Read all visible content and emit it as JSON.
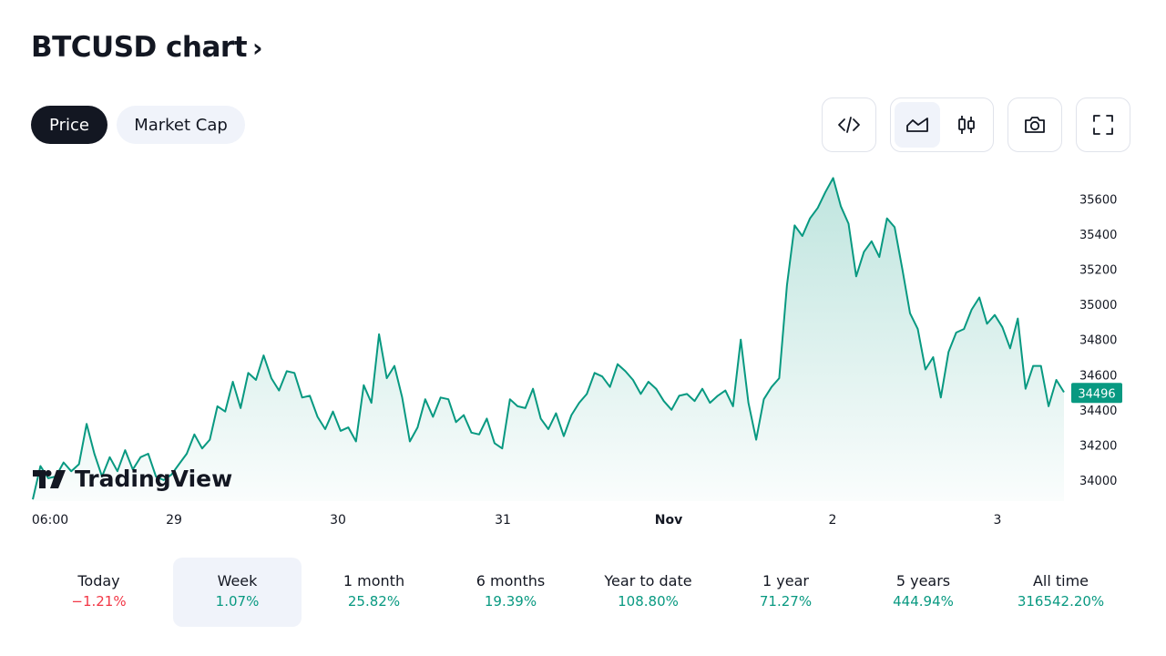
{
  "header": {
    "title": "BTCUSD chart",
    "chevron": "›"
  },
  "toggle": {
    "price": "Price",
    "market_cap": "Market Cap"
  },
  "toolbar": {
    "embed_icon": "code-icon",
    "area_icon": "area-chart-icon",
    "candles_icon": "candlestick-icon",
    "snapshot_icon": "camera-icon",
    "fullscreen_icon": "fullscreen-icon"
  },
  "logo": {
    "text": "TradingView"
  },
  "chart_data": {
    "type": "area",
    "symbol": "BTCUSD",
    "y_ticks": [
      "35600",
      "35400",
      "35200",
      "35000",
      "34800",
      "34600",
      "34400",
      "34200",
      "34000"
    ],
    "ylim": [
      33880,
      35800
    ],
    "x_ticks": [
      "06:00",
      "29",
      "30",
      "31",
      "Nov",
      "2",
      "3"
    ],
    "last_price": "34496",
    "series": [
      {
        "values": [
          33890,
          34080,
          34010,
          34020,
          34100,
          34050,
          34090,
          34320,
          34150,
          34020,
          34130,
          34050,
          34170,
          34060,
          34130,
          34150,
          34020,
          34000,
          34030,
          34090,
          34150,
          34260,
          34180,
          34230,
          34420,
          34390,
          34560,
          34410,
          34610,
          34570,
          34710,
          34580,
          34510,
          34620,
          34610,
          34470,
          34480,
          34360,
          34290,
          34390,
          34280,
          34300,
          34220,
          34540,
          34440,
          34830,
          34580,
          34650,
          34470,
          34220,
          34300,
          34460,
          34360,
          34470,
          34460,
          34330,
          34370,
          34270,
          34260,
          34350,
          34210,
          34180,
          34460,
          34420,
          34410,
          34520,
          34350,
          34290,
          34380,
          34250,
          34370,
          34440,
          34490,
          34610,
          34590,
          34530,
          34660,
          34620,
          34570,
          34490,
          34560,
          34520,
          34450,
          34400,
          34480,
          34490,
          34450,
          34520,
          34440,
          34480,
          34510,
          34420,
          34800,
          34440,
          34230,
          34460,
          34530,
          34580,
          35110,
          35450,
          35390,
          35490,
          35550,
          35640,
          35720,
          35560,
          35460,
          35160,
          35300,
          35360,
          35270,
          35490,
          35440,
          35200,
          34950,
          34860,
          34630,
          34700,
          34470,
          34730,
          34840,
          34860,
          34970,
          35040,
          34890,
          34940,
          34870,
          34750,
          34920,
          34520,
          34650,
          34650,
          34420,
          34570,
          34500
        ]
      }
    ],
    "colors": {
      "line": "#089981",
      "fill": "#089981",
      "negative": "#f23645"
    }
  },
  "periods": [
    {
      "label": "Today",
      "value": "−1.21%",
      "trend": "neg",
      "active": false
    },
    {
      "label": "Week",
      "value": "1.07%",
      "trend": "pos",
      "active": true
    },
    {
      "label": "1 month",
      "value": "25.82%",
      "trend": "pos",
      "active": false
    },
    {
      "label": "6 months",
      "value": "19.39%",
      "trend": "pos",
      "active": false
    },
    {
      "label": "Year to date",
      "value": "108.80%",
      "trend": "pos",
      "active": false
    },
    {
      "label": "1 year",
      "value": "71.27%",
      "trend": "pos",
      "active": false
    },
    {
      "label": "5 years",
      "value": "444.94%",
      "trend": "pos",
      "active": false
    },
    {
      "label": "All time",
      "value": "316542.20%",
      "trend": "pos",
      "active": false
    }
  ]
}
